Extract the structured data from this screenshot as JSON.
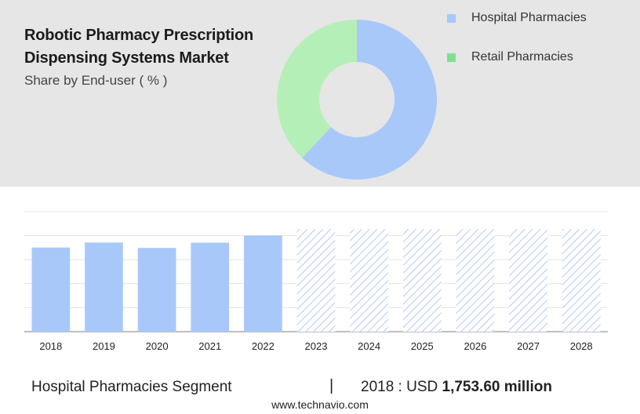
{
  "header": {
    "title_line1": "Robotic Pharmacy Prescription",
    "title_line2": "Dispensing Systems Market",
    "subtitle": "Share by End-user ( % )"
  },
  "chart_data": [
    {
      "type": "pie",
      "donut": true,
      "series": [
        {
          "name": "Hospital Pharmacies",
          "value": 62,
          "color": "#a8c8fa"
        },
        {
          "name": "Retail Pharmacies",
          "value": 38,
          "color": "#b5efb8"
        }
      ],
      "legend_colors": [
        "#a8c8fa",
        "#7fe08e"
      ],
      "legend_position": "top-right"
    },
    {
      "type": "bar",
      "categories": [
        "2018",
        "2019",
        "2020",
        "2021",
        "2022",
        "2023",
        "2024",
        "2025",
        "2026",
        "2027",
        "2028"
      ],
      "values": [
        1753.6,
        1857,
        1745,
        1855,
        2005,
        null,
        null,
        null,
        null,
        null,
        null
      ],
      "forecast": [
        false,
        false,
        false,
        false,
        false,
        true,
        true,
        true,
        true,
        true,
        true
      ],
      "ylim": [
        0,
        2500
      ],
      "grid": true,
      "bar_color": "#a8c8fa",
      "forecast_color": "#b8cdf2"
    }
  ],
  "footer": {
    "segment_label": "Hospital Pharmacies Segment",
    "divider": "|",
    "value_prefix": "2018 : USD ",
    "value_bold": "1,753.60 million"
  },
  "watermark": "www.technavio.com"
}
